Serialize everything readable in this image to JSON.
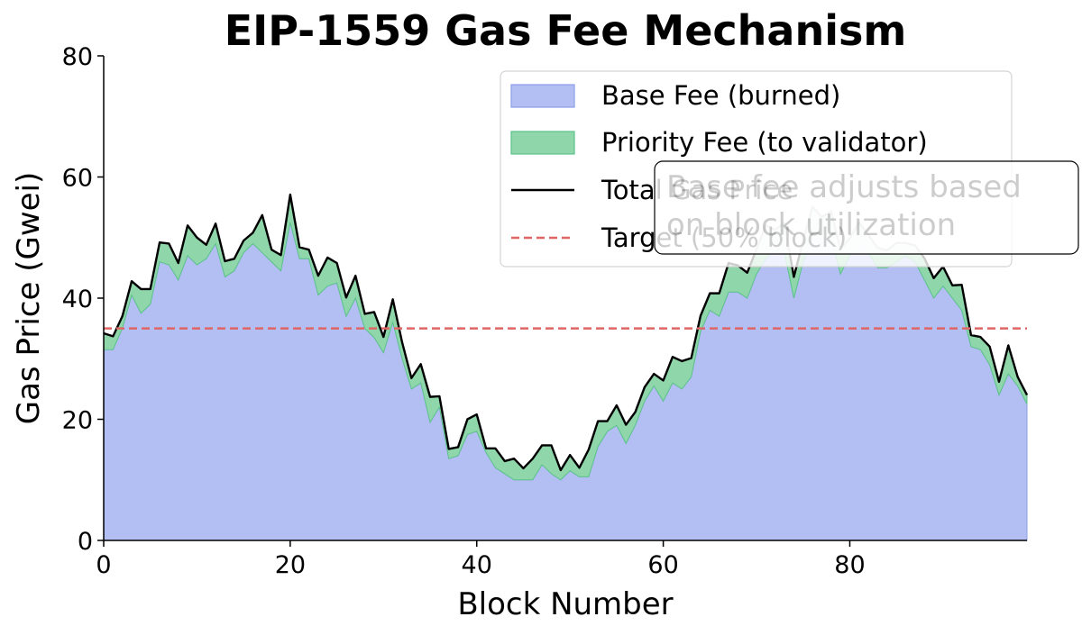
{
  "chart_data": {
    "type": "area",
    "title": "EIP-1559 Gas Fee Mechanism",
    "xlabel": "Block Number",
    "ylabel": "Gas Price (Gwei)",
    "xlim": [
      0,
      99
    ],
    "ylim": [
      0,
      80
    ],
    "xticks": [
      0,
      20,
      40,
      60,
      80
    ],
    "yticks": [
      0,
      20,
      40,
      60,
      80
    ],
    "grid": false,
    "legend_position": "upper-right",
    "x": [
      0,
      1,
      2,
      3,
      4,
      5,
      6,
      7,
      8,
      9,
      10,
      11,
      12,
      13,
      14,
      15,
      16,
      17,
      18,
      19,
      20,
      21,
      22,
      23,
      24,
      25,
      26,
      27,
      28,
      29,
      30,
      31,
      32,
      33,
      34,
      35,
      36,
      37,
      38,
      39,
      40,
      41,
      42,
      43,
      44,
      45,
      46,
      47,
      48,
      49,
      50,
      51,
      52,
      53,
      54,
      55,
      56,
      57,
      58,
      59,
      60,
      61,
      62,
      63,
      64,
      65,
      66,
      67,
      68,
      69,
      70,
      71,
      72,
      73,
      74,
      75,
      76,
      77,
      78,
      79,
      80,
      81,
      82,
      83,
      84,
      85,
      86,
      87,
      88,
      89,
      90,
      91,
      92,
      93,
      94,
      95,
      96,
      97,
      98,
      99
    ],
    "series": [
      {
        "name": "Base Fee (burned)",
        "color": "#8c9ee8",
        "values": [
          31.5,
          31.5,
          35,
          40.5,
          37.5,
          39,
          46,
          45.5,
          43,
          47,
          45.5,
          46.5,
          49,
          43.5,
          44.5,
          47.5,
          49,
          47.5,
          46,
          44.5,
          52.5,
          46.5,
          46.5,
          40.5,
          42,
          42.5,
          37,
          40,
          35,
          33.5,
          31,
          36,
          30,
          25,
          26,
          19.5,
          22,
          13.5,
          14,
          17.5,
          18,
          14.5,
          12,
          11,
          10,
          10,
          10,
          12.5,
          11,
          10,
          11.5,
          10.5,
          10.5,
          15.5,
          18,
          19,
          16,
          19,
          23,
          25.5,
          23,
          26,
          25,
          27,
          34.5,
          38,
          37,
          41,
          41,
          40,
          44,
          46.5,
          48,
          47.5,
          40,
          46,
          50,
          50,
          50,
          44,
          47,
          49,
          47.5,
          45,
          45,
          46,
          47,
          46,
          43,
          40,
          42,
          40,
          38,
          32,
          31.5,
          29,
          24,
          27.5,
          25.5,
          22.5
        ]
      },
      {
        "name": "Priority Fee (to validator)",
        "color": "#5cc38a",
        "values": [
          2.7,
          2.2,
          2.0,
          2.3,
          4.0,
          2.5,
          3.2,
          3.5,
          2.8,
          5.0,
          4.5,
          2.3,
          3.3,
          2.6,
          2.0,
          2.0,
          1.8,
          6.2,
          2.0,
          2.6,
          4.6,
          1.9,
          1.5,
          3.2,
          4.7,
          3.3,
          3.1,
          3.7,
          2.4,
          4.2,
          2.6,
          3.8,
          2.7,
          1.8,
          3.1,
          4.2,
          1.8,
          1.6,
          1.4,
          2.5,
          2.8,
          0.7,
          3.2,
          2.1,
          3.5,
          1.9,
          3.5,
          3.2,
          4.7,
          1.6,
          2.6,
          1.5,
          4.5,
          4.2,
          1.7,
          3.3,
          3.1,
          2.2,
          2.3,
          2.0,
          3.4,
          4.3,
          4.6,
          3.1,
          2.6,
          2.8,
          3.8,
          4.8,
          4.4,
          4.2,
          4.1,
          5.5,
          3.3,
          4.9,
          3.5,
          3.5,
          5.1,
          3.4,
          4.3,
          4.1,
          2.9,
          3.5,
          2.9,
          3.3,
          2.9,
          3.1,
          2.1,
          2.7,
          3.6,
          3.3,
          3.2,
          2.1,
          4.2,
          1.9,
          2.1,
          3.0,
          2.2,
          4.7,
          1.5,
          1.5
        ]
      },
      {
        "name": "Total Gas Price",
        "color": "#000000",
        "values": [
          34.2,
          33.7,
          37,
          42.8,
          41.5,
          41.5,
          49.2,
          49,
          45.8,
          52,
          50,
          48.8,
          52.3,
          46.1,
          46.5,
          49.5,
          50.8,
          53.7,
          48,
          47.1,
          57.1,
          48.4,
          48,
          43.7,
          46.7,
          45.8,
          40.1,
          43.7,
          37.4,
          37.7,
          33.6,
          39.8,
          32.7,
          26.8,
          29.1,
          23.7,
          23.8,
          15.1,
          15.4,
          20,
          20.8,
          15.2,
          15.2,
          13.1,
          13.5,
          11.9,
          13.5,
          15.7,
          15.7,
          11.6,
          14.1,
          12,
          15,
          19.7,
          19.7,
          22.3,
          19.1,
          21.2,
          25.3,
          27.5,
          26.4,
          30.3,
          29.6,
          30.1,
          37.1,
          40.8,
          40.8,
          45.8,
          45.4,
          44.2,
          48.1,
          52,
          51.3,
          52.4,
          43.5,
          49.5,
          55.1,
          53.4,
          54.3,
          48.1,
          49.9,
          52.5,
          50.4,
          48.3,
          47.9,
          49.1,
          49.1,
          48.7,
          46.6,
          43.3,
          45.2,
          42.1,
          42.2,
          33.9,
          33.6,
          32,
          26.2,
          32.2,
          27,
          24
        ]
      }
    ],
    "reference_lines": [
      {
        "name": "Target (50% block)",
        "y": 35,
        "color": "#e06666",
        "style": "dashed"
      }
    ],
    "annotations": [
      {
        "lines": [
          "Base fee adjusts based",
          "on block utilization"
        ]
      }
    ],
    "legend": [
      {
        "label": "Base Fee (burned)",
        "kind": "patch",
        "fill": "#b3bff2",
        "stroke": "#8c9ee8"
      },
      {
        "label": "Priority Fee (to validator)",
        "kind": "patch",
        "fill": "#8fd6aa",
        "stroke": "#5cc38a"
      },
      {
        "label": "Total Gas Price",
        "kind": "line",
        "stroke": "#000000"
      },
      {
        "label": "Target (50% block)",
        "kind": "dashed",
        "stroke": "#e06666"
      }
    ]
  }
}
